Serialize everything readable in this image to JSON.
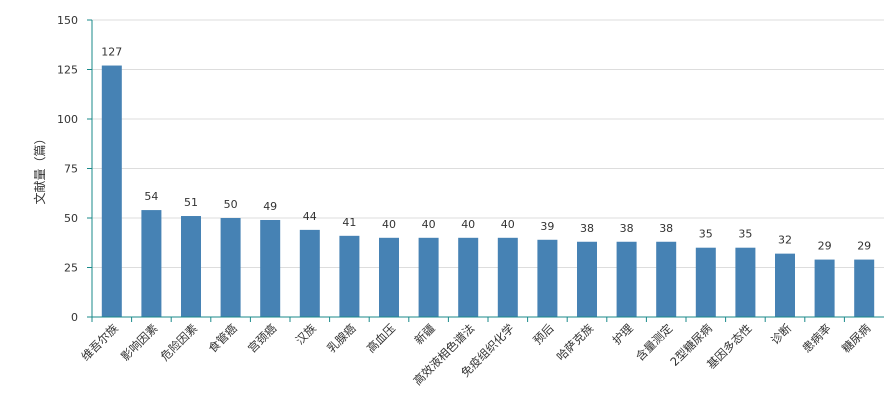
{
  "chart_data": {
    "type": "bar",
    "ylabel": "文献量（篇）",
    "ylim": [
      0,
      150
    ],
    "yticks": [
      0,
      25,
      50,
      75,
      100,
      125,
      150
    ],
    "grid": true,
    "categories": [
      "维吾尔族",
      "影响因素",
      "危险因素",
      "食管癌",
      "宫颈癌",
      "汉族",
      "乳腺癌",
      "高血压",
      "新疆",
      "高效液相色谱法",
      "免疫组织化学",
      "预后",
      "哈萨克族",
      "护理",
      "含量测定",
      "2型糖尿病",
      "基因多态性",
      "诊断",
      "患病率",
      "糖尿病"
    ],
    "values": [
      127,
      54,
      51,
      50,
      49,
      44,
      41,
      40,
      40,
      40,
      40,
      39,
      38,
      38,
      38,
      35,
      35,
      32,
      29,
      29
    ],
    "colors": {
      "bar": "#4682b4",
      "axis": "#1a8a8a",
      "grid": "#dddddd"
    }
  }
}
